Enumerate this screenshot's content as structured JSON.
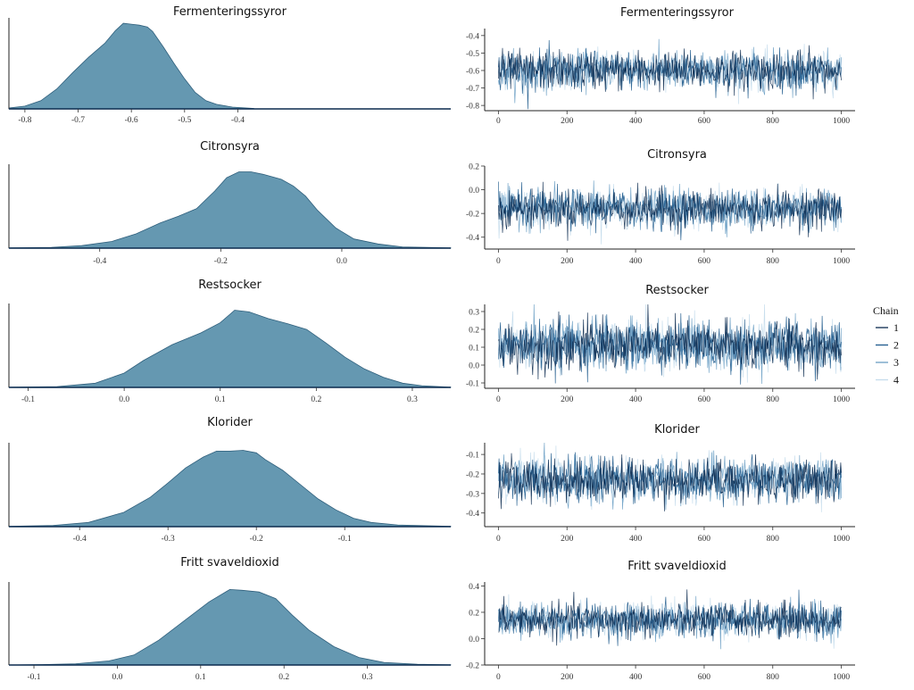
{
  "chart_data": [
    {
      "type": "area",
      "kind": "density",
      "title": "Fermenteringssyror",
      "xlim": [
        -0.83,
        0.0
      ],
      "fill_color": "#6598b1",
      "x_ticks": [
        "-0.8",
        "-0.7",
        "-0.6",
        "-0.5",
        "-0.4"
      ],
      "points": [
        [
          -0.83,
          0.01
        ],
        [
          -0.8,
          0.03
        ],
        [
          -0.77,
          0.09
        ],
        [
          -0.74,
          0.22
        ],
        [
          -0.71,
          0.4
        ],
        [
          -0.68,
          0.57
        ],
        [
          -0.65,
          0.72
        ],
        [
          -0.63,
          0.86
        ],
        [
          -0.615,
          0.94
        ],
        [
          -0.6,
          0.93
        ],
        [
          -0.585,
          0.92
        ],
        [
          -0.57,
          0.9
        ],
        [
          -0.56,
          0.85
        ],
        [
          -0.54,
          0.68
        ],
        [
          -0.52,
          0.5
        ],
        [
          -0.5,
          0.33
        ],
        [
          -0.48,
          0.18
        ],
        [
          -0.46,
          0.09
        ],
        [
          -0.44,
          0.05
        ],
        [
          -0.41,
          0.02
        ],
        [
          -0.37,
          0.005
        ]
      ]
    },
    {
      "type": "line",
      "kind": "trace",
      "title": "Fermenteringssyror",
      "xlim": [
        -40,
        1040
      ],
      "ylim": [
        -0.83,
        -0.36
      ],
      "x_ticks": [
        "0",
        "200",
        "400",
        "600",
        "800",
        "1000"
      ],
      "y_ticks": [
        -0.8,
        -0.7,
        -0.6,
        -0.5,
        -0.4
      ],
      "y_tick_labels": [
        "-0.8",
        "-0.7",
        "-0.6",
        "-0.5",
        "-0.4"
      ],
      "center": -0.6,
      "spread": 0.055
    },
    {
      "type": "area",
      "kind": "density",
      "title": "Citronsyra",
      "xlim": [
        -0.55,
        0.18
      ],
      "fill_color": "#6598b1",
      "x_ticks": [
        "-0.4",
        "-0.2",
        "0.0"
      ],
      "points": [
        [
          -0.55,
          0.003
        ],
        [
          -0.48,
          0.01
        ],
        [
          -0.43,
          0.03
        ],
        [
          -0.38,
          0.08
        ],
        [
          -0.34,
          0.17
        ],
        [
          -0.3,
          0.3
        ],
        [
          -0.27,
          0.38
        ],
        [
          -0.24,
          0.47
        ],
        [
          -0.21,
          0.68
        ],
        [
          -0.19,
          0.84
        ],
        [
          -0.17,
          0.91
        ],
        [
          -0.15,
          0.91
        ],
        [
          -0.13,
          0.88
        ],
        [
          -0.1,
          0.82
        ],
        [
          -0.08,
          0.74
        ],
        [
          -0.06,
          0.62
        ],
        [
          -0.04,
          0.45
        ],
        [
          -0.01,
          0.24
        ],
        [
          0.02,
          0.11
        ],
        [
          0.06,
          0.05
        ],
        [
          0.1,
          0.015
        ],
        [
          0.18,
          0.003
        ]
      ]
    },
    {
      "type": "line",
      "kind": "trace",
      "title": "Citronsyra",
      "xlim": [
        -40,
        1040
      ],
      "ylim": [
        -0.5,
        0.2
      ],
      "x_ticks": [
        "0",
        "200",
        "400",
        "600",
        "800",
        "1000"
      ],
      "y_ticks": [
        -0.4,
        -0.2,
        0.0,
        0.2
      ],
      "y_tick_labels": [
        "-0.4",
        "-0.2",
        "0.0",
        "0.2"
      ],
      "center": -0.16,
      "spread": 0.08
    },
    {
      "type": "area",
      "kind": "density",
      "title": "Restsocker",
      "xlim": [
        -0.12,
        0.34
      ],
      "fill_color": "#6598b1",
      "x_ticks": [
        "-0.1",
        "0.0",
        "0.1",
        "0.2",
        "0.3"
      ],
      "points": [
        [
          -0.12,
          0.002
        ],
        [
          -0.07,
          0.01
        ],
        [
          -0.03,
          0.05
        ],
        [
          0.0,
          0.17
        ],
        [
          0.02,
          0.32
        ],
        [
          0.05,
          0.51
        ],
        [
          0.08,
          0.65
        ],
        [
          0.1,
          0.77
        ],
        [
          0.115,
          0.92
        ],
        [
          0.13,
          0.9
        ],
        [
          0.15,
          0.82
        ],
        [
          0.17,
          0.76
        ],
        [
          0.19,
          0.69
        ],
        [
          0.21,
          0.53
        ],
        [
          0.23,
          0.36
        ],
        [
          0.25,
          0.22
        ],
        [
          0.27,
          0.12
        ],
        [
          0.29,
          0.05
        ],
        [
          0.31,
          0.02
        ],
        [
          0.34,
          0.003
        ]
      ]
    },
    {
      "type": "line",
      "kind": "trace",
      "title": "Restsocker",
      "xlim": [
        -40,
        1040
      ],
      "ylim": [
        -0.13,
        0.34
      ],
      "x_ticks": [
        "0",
        "200",
        "400",
        "600",
        "800",
        "1000"
      ],
      "y_ticks": [
        -0.1,
        0.0,
        0.1,
        0.2,
        0.3
      ],
      "y_tick_labels": [
        "-0.1",
        "0.0",
        "0.1",
        "0.2",
        "0.3"
      ],
      "center": 0.11,
      "spread": 0.07
    },
    {
      "type": "area",
      "kind": "density",
      "title": "Klorider",
      "xlim": [
        -0.48,
        0.02
      ],
      "fill_color": "#6598b1",
      "x_ticks": [
        "-0.4",
        "-0.3",
        "-0.2",
        "-0.1"
      ],
      "points": [
        [
          -0.48,
          0.003
        ],
        [
          -0.43,
          0.015
        ],
        [
          -0.39,
          0.05
        ],
        [
          -0.35,
          0.17
        ],
        [
          -0.32,
          0.35
        ],
        [
          -0.3,
          0.52
        ],
        [
          -0.28,
          0.7
        ],
        [
          -0.26,
          0.83
        ],
        [
          -0.245,
          0.9
        ],
        [
          -0.23,
          0.9
        ],
        [
          -0.215,
          0.91
        ],
        [
          -0.2,
          0.88
        ],
        [
          -0.19,
          0.8
        ],
        [
          -0.17,
          0.67
        ],
        [
          -0.15,
          0.5
        ],
        [
          -0.13,
          0.33
        ],
        [
          -0.11,
          0.2
        ],
        [
          -0.09,
          0.1
        ],
        [
          -0.07,
          0.05
        ],
        [
          -0.04,
          0.02
        ],
        [
          0.02,
          0.003
        ]
      ]
    },
    {
      "type": "line",
      "kind": "trace",
      "title": "Klorider",
      "xlim": [
        -40,
        1040
      ],
      "ylim": [
        -0.47,
        -0.04
      ],
      "x_ticks": [
        "0",
        "200",
        "400",
        "600",
        "800",
        "1000"
      ],
      "y_ticks": [
        -0.4,
        -0.3,
        -0.2,
        -0.1
      ],
      "y_tick_labels": [
        "-0.4",
        "-0.3",
        "-0.2",
        "-0.1"
      ],
      "center": -0.23,
      "spread": 0.055
    },
    {
      "type": "area",
      "kind": "density",
      "title": "Fritt svaveldioxid",
      "xlim": [
        -0.13,
        0.4
      ],
      "fill_color": "#6598b1",
      "x_ticks": [
        "-0.1",
        "0.0",
        "0.1",
        "0.2",
        "0.3"
      ],
      "points": [
        [
          -0.13,
          0.0
        ],
        [
          -0.09,
          0.005
        ],
        [
          -0.05,
          0.015
        ],
        [
          -0.01,
          0.05
        ],
        [
          0.02,
          0.12
        ],
        [
          0.05,
          0.3
        ],
        [
          0.08,
          0.53
        ],
        [
          0.11,
          0.76
        ],
        [
          0.135,
          0.91
        ],
        [
          0.15,
          0.9
        ],
        [
          0.17,
          0.88
        ],
        [
          0.19,
          0.8
        ],
        [
          0.21,
          0.6
        ],
        [
          0.23,
          0.42
        ],
        [
          0.26,
          0.22
        ],
        [
          0.29,
          0.09
        ],
        [
          0.32,
          0.03
        ],
        [
          0.36,
          0.01
        ],
        [
          0.4,
          0.002
        ]
      ]
    },
    {
      "type": "line",
      "kind": "trace",
      "title": "Fritt svaveldioxid",
      "xlim": [
        -40,
        1040
      ],
      "ylim": [
        -0.2,
        0.43
      ],
      "x_ticks": [
        "0",
        "200",
        "400",
        "600",
        "800",
        "1000"
      ],
      "y_ticks": [
        -0.2,
        0.0,
        0.2,
        0.4
      ],
      "y_tick_labels": [
        "-0.2",
        "0.0",
        "0.2",
        "0.4"
      ],
      "center": 0.14,
      "spread": 0.065
    }
  ],
  "legend": {
    "title": "Chain",
    "placement": "right",
    "chains": [
      {
        "label": "1",
        "color": "#0b2a4f"
      },
      {
        "label": "2",
        "color": "#1e5a8c"
      },
      {
        "label": "3",
        "color": "#6a9ec4"
      },
      {
        "label": "4",
        "color": "#c5dcec"
      }
    ]
  }
}
